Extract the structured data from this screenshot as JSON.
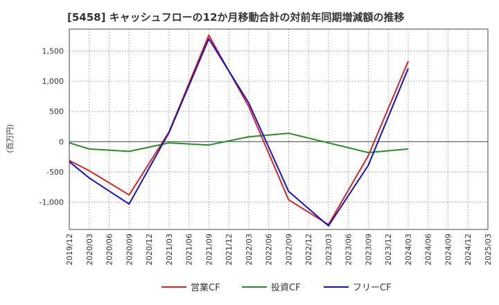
{
  "chart_data": {
    "type": "line",
    "title": "[5458]  キャッシュフローの12か月移動合計の対前年同期増減額の推移",
    "ylabel": "(百万円)",
    "xlabel": "",
    "ylim": [
      -1450,
      1860
    ],
    "yticks": [
      1500,
      1000,
      500,
      0,
      -500,
      -1000
    ],
    "ytick_labels": [
      "1,500",
      "1,000",
      "500",
      "0",
      "-500",
      "-1,000"
    ],
    "x": [
      "2019/12",
      "2020/03",
      "2020/06",
      "2020/09",
      "2020/12",
      "2021/03",
      "2021/06",
      "2021/09",
      "2021/12",
      "2022/03",
      "2022/06",
      "2022/09",
      "2022/12",
      "2023/03",
      "2023/06",
      "2023/09",
      "2023/12",
      "2024/03",
      "2024/06",
      "2024/09",
      "2024/12",
      "2025/03"
    ],
    "grid": true,
    "legend_position": "bottom",
    "series": [
      {
        "name": "営業CF",
        "color": "#e02020",
        "values": [
          -310,
          -480,
          null,
          -880,
          null,
          160,
          null,
          1760,
          null,
          580,
          null,
          -960,
          null,
          -1370,
          null,
          -230,
          null,
          1330,
          null,
          null,
          null,
          null
        ]
      },
      {
        "name": "投資CF",
        "color": "#2a8a2a",
        "values": [
          -20,
          -120,
          null,
          -160,
          null,
          -20,
          null,
          -55,
          null,
          80,
          null,
          140,
          null,
          -20,
          null,
          -180,
          null,
          -120,
          null,
          null,
          null,
          null
        ]
      },
      {
        "name": "フリーCF",
        "color": "#1010d0",
        "values": [
          -330,
          -600,
          null,
          -1030,
          null,
          150,
          null,
          1700,
          null,
          640,
          null,
          -820,
          null,
          -1390,
          null,
          -390,
          null,
          1210,
          null,
          null,
          null,
          null
        ]
      }
    ]
  }
}
